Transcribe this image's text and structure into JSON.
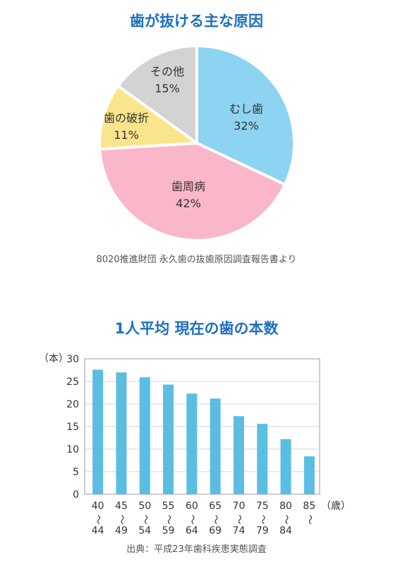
{
  "pie": {
    "title": "歯が抜ける主な原因",
    "source": "8020推進財団 永久歯の抜歯原因調査報告書より",
    "chart_data": {
      "type": "pie",
      "slices": [
        {
          "label": "むし歯",
          "value": 32,
          "value_label": "32%",
          "color": "#8dd3f2"
        },
        {
          "label": "歯周病",
          "value": 42,
          "value_label": "42%",
          "color": "#f9b7c9"
        },
        {
          "label": "歯の破折",
          "value": 11,
          "value_label": "11%",
          "color": "#fbe58c"
        },
        {
          "label": "その他",
          "value": 15,
          "value_label": "15%",
          "color": "#d3d3d3"
        }
      ]
    }
  },
  "bar": {
    "title": "1人平均 現在の歯の本数",
    "source": "出典：平成23年歯科疾患実態調査",
    "chart_data": {
      "type": "bar",
      "ylabel": "（本）",
      "xunit": "（歳）",
      "ylim": [
        0,
        30
      ],
      "yticks": [
        "0",
        "5",
        "10",
        "15",
        "20",
        "25",
        "30"
      ],
      "color": "#5bbde2",
      "categories": [
        {
          "top": "40",
          "mid": "〜",
          "bottom": "44"
        },
        {
          "top": "45",
          "mid": "〜",
          "bottom": "49"
        },
        {
          "top": "50",
          "mid": "〜",
          "bottom": "54"
        },
        {
          "top": "55",
          "mid": "〜",
          "bottom": "59"
        },
        {
          "top": "60",
          "mid": "〜",
          "bottom": "64"
        },
        {
          "top": "65",
          "mid": "〜",
          "bottom": "69"
        },
        {
          "top": "70",
          "mid": "〜",
          "bottom": "74"
        },
        {
          "top": "75",
          "mid": "〜",
          "bottom": "79"
        },
        {
          "top": "80",
          "mid": "〜",
          "bottom": "84"
        },
        {
          "top": "85",
          "mid": "〜",
          "bottom": ""
        }
      ],
      "values": [
        27.6,
        27.0,
        25.9,
        24.3,
        22.3,
        21.2,
        17.3,
        15.6,
        12.2,
        8.4
      ]
    }
  }
}
